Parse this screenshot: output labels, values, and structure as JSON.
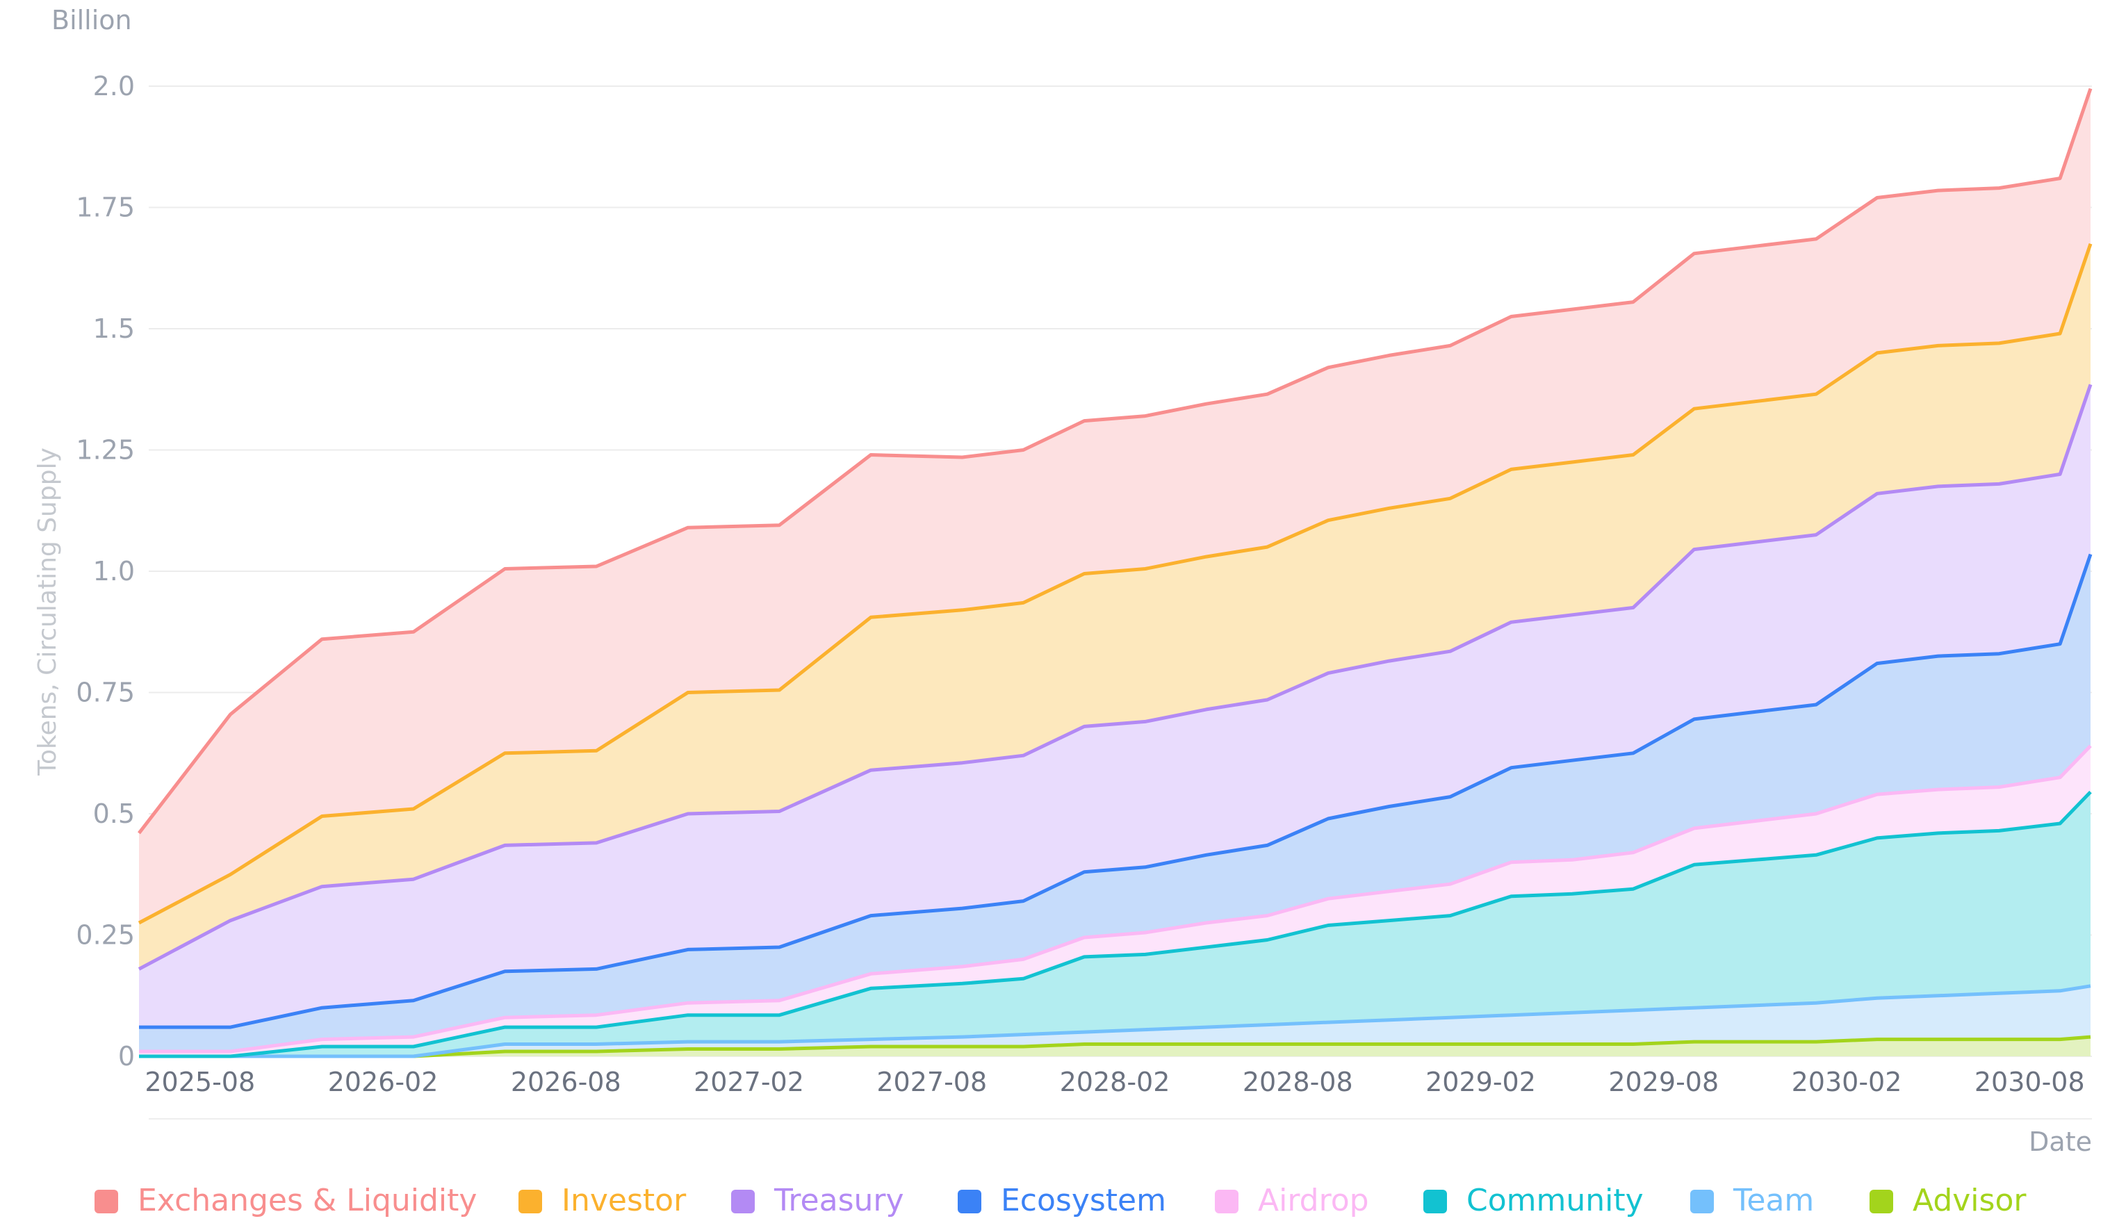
{
  "chart_data": {
    "type": "area",
    "stacked": true,
    "y_unit_label": "Billion",
    "ylabel": "Tokens, Circulating Supply",
    "xlabel": "Date",
    "ylim": [
      0,
      2.0
    ],
    "y_ticks": [
      {
        "value": 0,
        "label": "0"
      },
      {
        "value": 0.25,
        "label": "0.25"
      },
      {
        "value": 0.5,
        "label": "0.5"
      },
      {
        "value": 0.75,
        "label": "0.75"
      },
      {
        "value": 1.0,
        "label": "1.0"
      },
      {
        "value": 1.25,
        "label": "1.25"
      },
      {
        "value": 1.5,
        "label": "1.5"
      },
      {
        "value": 1.75,
        "label": "1.75"
      },
      {
        "value": 2.0,
        "label": "2.0"
      }
    ],
    "x_ticks": [
      {
        "index": 2,
        "label": "2025-08"
      },
      {
        "index": 8,
        "label": "2026-02"
      },
      {
        "index": 14,
        "label": "2026-08"
      },
      {
        "index": 20,
        "label": "2027-02"
      },
      {
        "index": 26,
        "label": "2027-08"
      },
      {
        "index": 32,
        "label": "2028-02"
      },
      {
        "index": 38,
        "label": "2028-08"
      },
      {
        "index": 44,
        "label": "2029-02"
      },
      {
        "index": 50,
        "label": "2029-08"
      },
      {
        "index": 56,
        "label": "2030-02"
      },
      {
        "index": 62,
        "label": "2030-08"
      }
    ],
    "x_points": [
      0,
      3,
      6,
      9,
      12,
      15,
      18,
      21,
      24,
      27,
      29,
      31,
      33,
      35,
      37,
      39,
      41,
      43,
      45,
      47,
      49,
      51,
      53,
      55,
      57,
      59,
      61,
      63,
      64
    ],
    "series": [
      {
        "name": "Advisor",
        "color": "#a3d41c",
        "fill": "#e3f2c0",
        "values": [
          0,
          0,
          0,
          0,
          0.01,
          0.01,
          0.015,
          0.015,
          0.02,
          0.02,
          0.02,
          0.025,
          0.025,
          0.025,
          0.025,
          0.025,
          0.025,
          0.025,
          0.025,
          0.025,
          0.025,
          0.03,
          0.03,
          0.03,
          0.035,
          0.035,
          0.035,
          0.035,
          0.04
        ]
      },
      {
        "name": "Team",
        "color": "#74c0fc",
        "fill": "#d6ebfc",
        "values": [
          0,
          0,
          0,
          0,
          0.015,
          0.015,
          0.015,
          0.015,
          0.015,
          0.02,
          0.025,
          0.025,
          0.03,
          0.035,
          0.04,
          0.045,
          0.05,
          0.055,
          0.06,
          0.065,
          0.07,
          0.07,
          0.075,
          0.08,
          0.085,
          0.09,
          0.095,
          0.1,
          0.105
        ]
      },
      {
        "name": "Community",
        "color": "#12c2d1",
        "fill": "#b3edf0",
        "values": [
          0,
          0,
          0.02,
          0.02,
          0.035,
          0.035,
          0.055,
          0.055,
          0.105,
          0.11,
          0.115,
          0.155,
          0.155,
          0.165,
          0.175,
          0.2,
          0.205,
          0.21,
          0.245,
          0.245,
          0.25,
          0.295,
          0.3,
          0.305,
          0.33,
          0.335,
          0.335,
          0.345,
          0.4
        ]
      },
      {
        "name": "Airdrop",
        "color": "#fbb8f4",
        "fill": "#fde4fb",
        "values": [
          0.01,
          0.01,
          0.015,
          0.02,
          0.02,
          0.025,
          0.025,
          0.03,
          0.03,
          0.035,
          0.04,
          0.04,
          0.045,
          0.05,
          0.05,
          0.055,
          0.06,
          0.065,
          0.07,
          0.07,
          0.075,
          0.075,
          0.08,
          0.085,
          0.09,
          0.09,
          0.09,
          0.095,
          0.095
        ]
      },
      {
        "name": "Ecosystem",
        "color": "#3b82f6",
        "fill": "#c6dcfb",
        "values": [
          0.05,
          0.05,
          0.065,
          0.075,
          0.095,
          0.095,
          0.11,
          0.11,
          0.12,
          0.12,
          0.12,
          0.135,
          0.135,
          0.14,
          0.145,
          0.165,
          0.175,
          0.18,
          0.195,
          0.205,
          0.205,
          0.225,
          0.225,
          0.225,
          0.27,
          0.275,
          0.275,
          0.275,
          0.395
        ]
      },
      {
        "name": "Treasury",
        "color": "#b38af4",
        "fill": "#e9dcfd",
        "values": [
          0.12,
          0.22,
          0.25,
          0.25,
          0.26,
          0.26,
          0.28,
          0.28,
          0.3,
          0.3,
          0.3,
          0.3,
          0.3,
          0.3,
          0.3,
          0.3,
          0.3,
          0.3,
          0.3,
          0.3,
          0.3,
          0.35,
          0.35,
          0.35,
          0.35,
          0.35,
          0.35,
          0.35,
          0.35
        ]
      },
      {
        "name": "Investor",
        "color": "#fbb12e",
        "fill": "#fde8bd",
        "values": [
          0.095,
          0.095,
          0.145,
          0.145,
          0.19,
          0.19,
          0.25,
          0.25,
          0.315,
          0.315,
          0.315,
          0.315,
          0.315,
          0.315,
          0.315,
          0.315,
          0.315,
          0.315,
          0.315,
          0.315,
          0.315,
          0.29,
          0.29,
          0.29,
          0.29,
          0.29,
          0.29,
          0.29,
          0.29
        ]
      },
      {
        "name": "Exchanges & Liquidity",
        "color": "#f88e8e",
        "fill": "#fde0e1",
        "values": [
          0.185,
          0.33,
          0.365,
          0.365,
          0.38,
          0.38,
          0.34,
          0.34,
          0.335,
          0.315,
          0.315,
          0.315,
          0.315,
          0.315,
          0.315,
          0.315,
          0.315,
          0.315,
          0.315,
          0.315,
          0.315,
          0.32,
          0.32,
          0.32,
          0.32,
          0.32,
          0.32,
          0.32,
          0.32
        ]
      }
    ],
    "legend": [
      "Exchanges & Liquidity",
      "Investor",
      "Treasury",
      "Ecosystem",
      "Airdrop",
      "Community",
      "Team",
      "Advisor"
    ],
    "legend_position": "bottom",
    "grid": true
  }
}
